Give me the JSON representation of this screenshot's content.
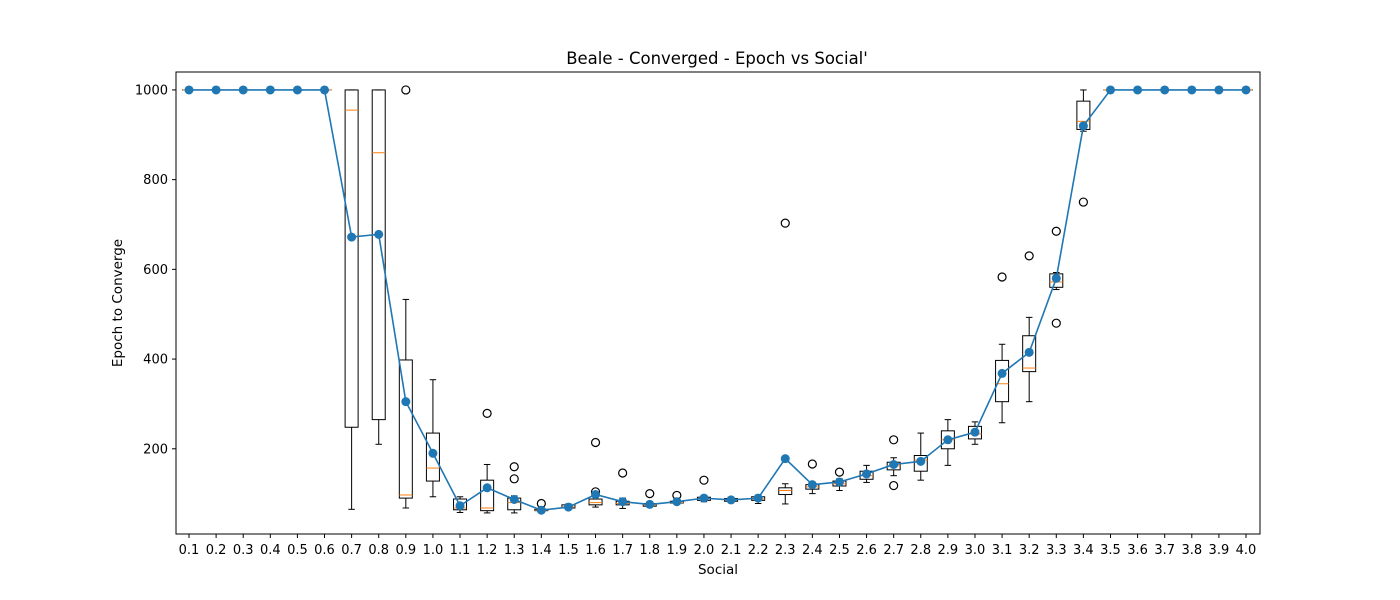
{
  "chart_data": {
    "type": "box",
    "title": "Beale - Converged - Epoch vs Social'",
    "xlabel": "Social",
    "ylabel": "Epoch to Converge",
    "categories": [
      "0.1",
      "0.2",
      "0.3",
      "0.4",
      "0.5",
      "0.6",
      "0.7",
      "0.8",
      "0.9",
      "1.0",
      "1.1",
      "1.2",
      "1.3",
      "1.4",
      "1.5",
      "1.6",
      "1.7",
      "1.8",
      "1.9",
      "2.0",
      "2.1",
      "2.2",
      "2.3",
      "2.4",
      "2.5",
      "2.6",
      "2.7",
      "2.8",
      "2.9",
      "3.0",
      "3.1",
      "3.2",
      "3.3",
      "3.4",
      "3.5",
      "3.6",
      "3.7",
      "3.8",
      "3.9",
      "4.0"
    ],
    "yticks": [
      200,
      400,
      600,
      800,
      1000
    ],
    "ylim": [
      10,
      1040
    ],
    "grid": false,
    "colors": {
      "box": "#000000",
      "median": "#ff7f0e",
      "mean_series": "#1f77b4",
      "flier": "#000000"
    },
    "boxes": [
      {
        "min": 1000,
        "q1": 1000,
        "median": 1000,
        "q3": 1000,
        "max": 1000,
        "fliers": []
      },
      {
        "min": 1000,
        "q1": 1000,
        "median": 1000,
        "q3": 1000,
        "max": 1000,
        "fliers": []
      },
      {
        "min": 1000,
        "q1": 1000,
        "median": 1000,
        "q3": 1000,
        "max": 1000,
        "fliers": []
      },
      {
        "min": 1000,
        "q1": 1000,
        "median": 1000,
        "q3": 1000,
        "max": 1000,
        "fliers": []
      },
      {
        "min": 1000,
        "q1": 1000,
        "median": 1000,
        "q3": 1000,
        "max": 1000,
        "fliers": []
      },
      {
        "min": 1000,
        "q1": 1000,
        "median": 1000,
        "q3": 1000,
        "max": 1000,
        "fliers": []
      },
      {
        "min": 65,
        "q1": 248,
        "median": 955,
        "q3": 1000,
        "max": 1000,
        "fliers": []
      },
      {
        "min": 210,
        "q1": 265,
        "median": 860,
        "q3": 1000,
        "max": 1000,
        "fliers": []
      },
      {
        "min": 68,
        "q1": 90,
        "median": 97,
        "q3": 398,
        "max": 533,
        "fliers": [
          1000
        ]
      },
      {
        "min": 93,
        "q1": 128,
        "median": 157,
        "q3": 235,
        "max": 354,
        "fliers": []
      },
      {
        "min": 58,
        "q1": 64,
        "median": 68,
        "q3": 88,
        "max": 93,
        "fliers": []
      },
      {
        "min": 57,
        "q1": 62,
        "median": 68,
        "q3": 130,
        "max": 165,
        "fliers": [
          279
        ]
      },
      {
        "min": 57,
        "q1": 64,
        "median": 80,
        "q3": 90,
        "max": 95,
        "fliers": [
          133,
          160
        ]
      },
      {
        "min": 60,
        "q1": 62,
        "median": 63,
        "q3": 65,
        "max": 67,
        "fliers": [
          78
        ]
      },
      {
        "min": 66,
        "q1": 68,
        "median": 70,
        "q3": 75,
        "max": 77,
        "fliers": []
      },
      {
        "min": 70,
        "q1": 75,
        "median": 80,
        "q3": 88,
        "max": 95,
        "fliers": [
          104,
          214
        ]
      },
      {
        "min": 67,
        "q1": 75,
        "median": 78,
        "q3": 83,
        "max": 90,
        "fliers": [
          146
        ]
      },
      {
        "min": 70,
        "q1": 72,
        "median": 75,
        "q3": 78,
        "max": 82,
        "fliers": [
          100
        ]
      },
      {
        "min": 76,
        "q1": 79,
        "median": 80,
        "q3": 83,
        "max": 90,
        "fliers": [
          96
        ]
      },
      {
        "min": 82,
        "q1": 85,
        "median": 88,
        "q3": 92,
        "max": 96,
        "fliers": [
          130
        ]
      },
      {
        "min": 80,
        "q1": 83,
        "median": 86,
        "q3": 89,
        "max": 92,
        "fliers": []
      },
      {
        "min": 78,
        "q1": 85,
        "median": 88,
        "q3": 93,
        "max": 97,
        "fliers": []
      },
      {
        "min": 77,
        "q1": 98,
        "median": 107,
        "q3": 113,
        "max": 122,
        "fliers": [
          703
        ]
      },
      {
        "min": 100,
        "q1": 110,
        "median": 115,
        "q3": 120,
        "max": 123,
        "fliers": [
          166
        ]
      },
      {
        "min": 107,
        "q1": 117,
        "median": 122,
        "q3": 128,
        "max": 133,
        "fliers": [
          148
        ]
      },
      {
        "min": 125,
        "q1": 132,
        "median": 140,
        "q3": 150,
        "max": 163,
        "fliers": []
      },
      {
        "min": 140,
        "q1": 153,
        "median": 162,
        "q3": 170,
        "max": 180,
        "fliers": [
          118,
          220
        ]
      },
      {
        "min": 130,
        "q1": 150,
        "median": 175,
        "q3": 185,
        "max": 235,
        "fliers": []
      },
      {
        "min": 163,
        "q1": 200,
        "median": 220,
        "q3": 240,
        "max": 265,
        "fliers": []
      },
      {
        "min": 210,
        "q1": 222,
        "median": 233,
        "q3": 250,
        "max": 260,
        "fliers": []
      },
      {
        "min": 258,
        "q1": 305,
        "median": 345,
        "q3": 397,
        "max": 433,
        "fliers": [
          583
        ]
      },
      {
        "min": 305,
        "q1": 372,
        "median": 380,
        "q3": 452,
        "max": 493,
        "fliers": [
          630
        ]
      },
      {
        "min": 555,
        "q1": 560,
        "median": 572,
        "q3": 590,
        "max": 593,
        "fliers": [
          480,
          685
        ]
      },
      {
        "min": 908,
        "q1": 912,
        "median": 930,
        "q3": 975,
        "max": 1000,
        "fliers": [
          750
        ]
      },
      {
        "min": 1000,
        "q1": 1000,
        "median": 1000,
        "q3": 1000,
        "max": 1000,
        "fliers": []
      },
      {
        "min": 1000,
        "q1": 1000,
        "median": 1000,
        "q3": 1000,
        "max": 1000,
        "fliers": []
      },
      {
        "min": 1000,
        "q1": 1000,
        "median": 1000,
        "q3": 1000,
        "max": 1000,
        "fliers": []
      },
      {
        "min": 1000,
        "q1": 1000,
        "median": 1000,
        "q3": 1000,
        "max": 1000,
        "fliers": []
      },
      {
        "min": 1000,
        "q1": 1000,
        "median": 1000,
        "q3": 1000,
        "max": 1000,
        "fliers": []
      },
      {
        "min": 1000,
        "q1": 1000,
        "median": 1000,
        "q3": 1000,
        "max": 1000,
        "fliers": []
      }
    ],
    "means": [
      1000,
      1000,
      1000,
      1000,
      1000,
      1000,
      672,
      678,
      305,
      190,
      73,
      113,
      87,
      63,
      70,
      98,
      82,
      76,
      82,
      90,
      86,
      90,
      178,
      120,
      126,
      144,
      165,
      172,
      220,
      237,
      368,
      415,
      580,
      920,
      1000,
      1000,
      1000,
      1000,
      1000,
      1000
    ]
  }
}
